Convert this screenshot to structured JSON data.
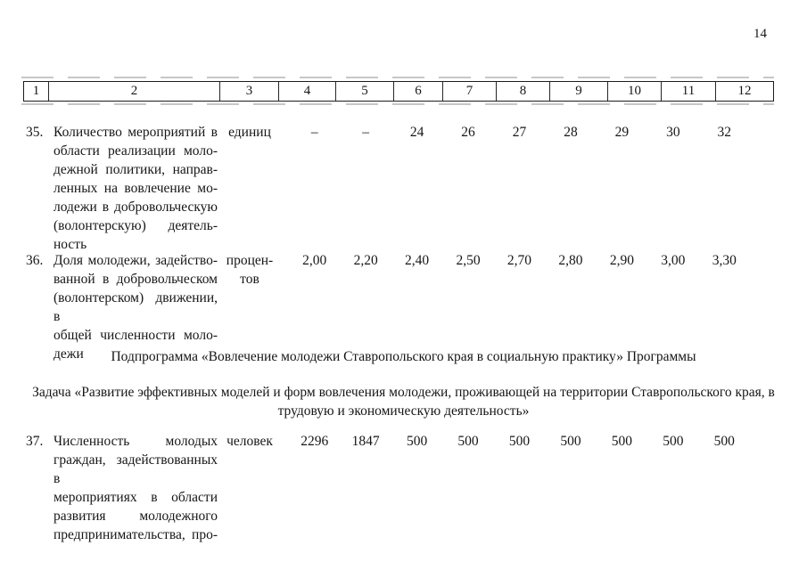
{
  "page": {
    "number": "14"
  },
  "table": {
    "header_cells": [
      "1",
      "2",
      "3",
      "4",
      "5",
      "6",
      "7",
      "8",
      "9",
      "10",
      "11",
      "12"
    ],
    "rows": [
      {
        "num": "35.",
        "indicator_lines": [
          "Количество мероприятий в",
          "области реализации моло-",
          "дежной политики, направ-",
          "ленных на вовлечение мо-",
          "лодежи в добровольческую",
          "(волонтерскую) деятель-",
          "ность"
        ],
        "unit_lines": [
          "единиц"
        ],
        "values": [
          "–",
          "–",
          "24",
          "26",
          "27",
          "28",
          "29",
          "30",
          "32"
        ]
      },
      {
        "num": "36.",
        "indicator_lines": [
          "Доля молодежи, задейство-",
          "ванной в добровольческом",
          "(волонтерском) движении, в",
          "общей численности моло-",
          "дежи"
        ],
        "unit_lines": [
          "процен-",
          "тов"
        ],
        "values": [
          "2,00",
          "2,20",
          "2,40",
          "2,50",
          "2,70",
          "2,80",
          "2,90",
          "3,00",
          "3,30"
        ]
      },
      {
        "num": "37.",
        "indicator_lines": [
          "Численность молодых",
          "граждан, задействованных в",
          "мероприятиях в области",
          "развития молодежного",
          "предпринимательства, про-"
        ],
        "unit_lines": [
          "человек"
        ],
        "values": [
          "2296",
          "1847",
          "500",
          "500",
          "500",
          "500",
          "500",
          "500",
          "500"
        ]
      }
    ]
  },
  "sections": {
    "subprogram": "Подпрограмма «Вовлечение молодежи Ставропольского края в социальную практику» Программы",
    "task_lines": [
      "Задача «Развитие эффективных моделей и форм вовлечения молодежи, проживающей на территории Ставропольского края, в",
      "трудовую и экономическую деятельность»"
    ]
  }
}
